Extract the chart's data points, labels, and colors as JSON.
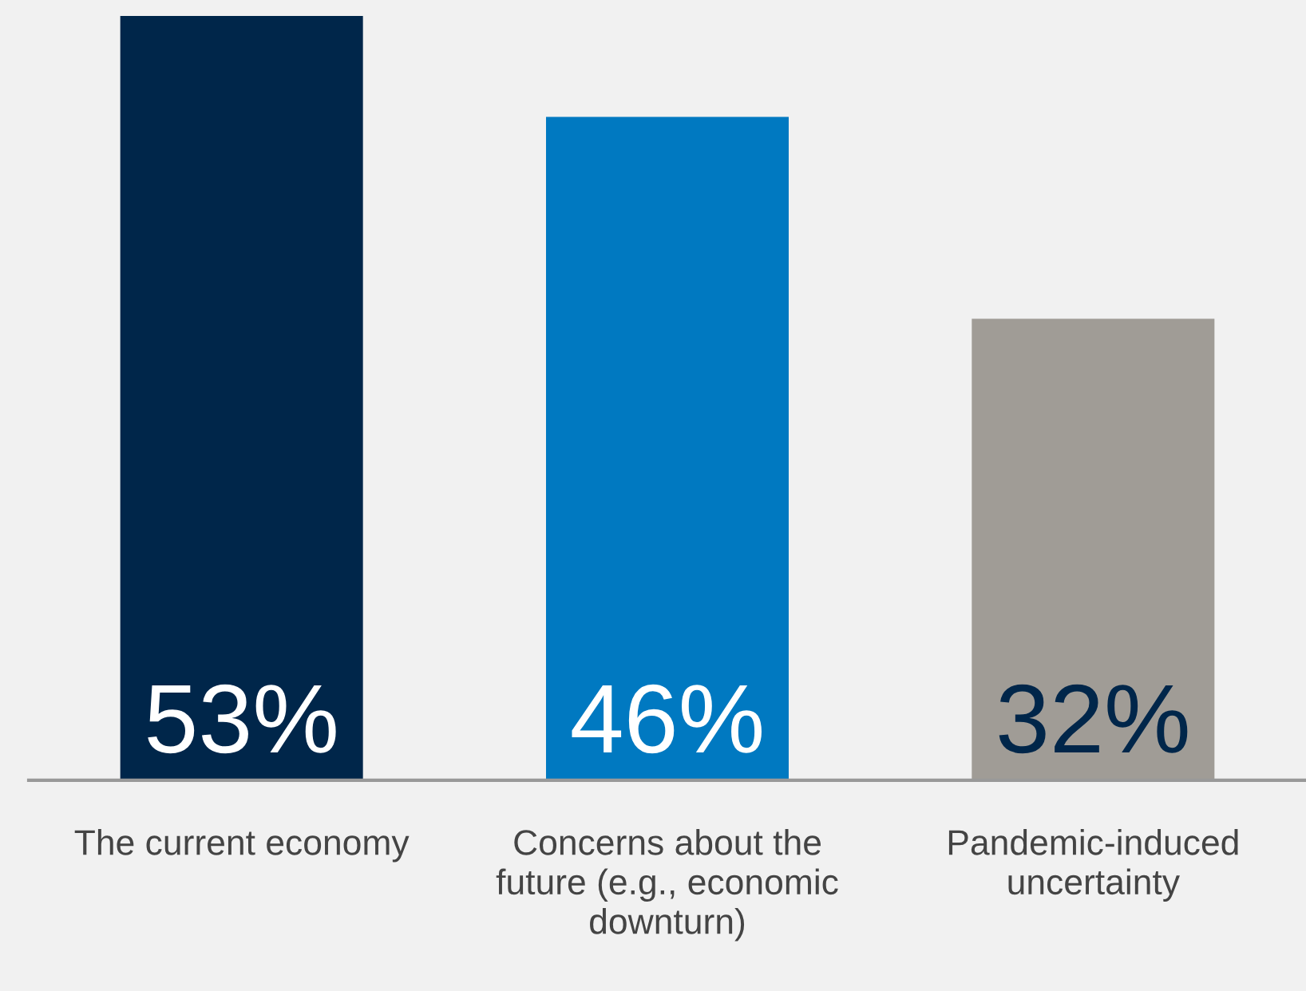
{
  "chart_data": {
    "type": "bar",
    "categories": [
      "The current economy",
      "Concerns about the\nfuture (e.g., economic\ndownturn)",
      "Pandemic-induced\nuncertainty"
    ],
    "values": [
      53,
      46,
      32
    ],
    "colors": [
      "#00264a",
      "#0079c1",
      "#a09c96"
    ],
    "value_labels": [
      "53%",
      "46%",
      "32%"
    ],
    "grid": false,
    "legend": false
  }
}
